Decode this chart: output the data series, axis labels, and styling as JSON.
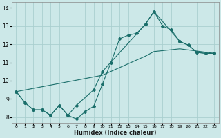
{
  "xlabel": "Humidex (Indice chaleur)",
  "bg_color": "#cce8e8",
  "grid_color": "#aacfcf",
  "line_color": "#1a6e6a",
  "xlim": [
    -0.5,
    23.5
  ],
  "ylim": [
    7.7,
    14.3
  ],
  "yticks": [
    8,
    9,
    10,
    11,
    12,
    13,
    14
  ],
  "xticks": [
    0,
    1,
    2,
    3,
    4,
    5,
    6,
    7,
    8,
    9,
    10,
    11,
    12,
    13,
    14,
    15,
    16,
    17,
    18,
    19,
    20,
    21,
    22,
    23
  ],
  "line1_x": [
    0,
    1,
    2,
    3,
    4,
    5,
    6,
    7,
    8,
    9,
    10,
    11,
    12,
    13,
    14,
    15,
    16,
    17,
    18,
    19,
    20,
    21,
    22,
    23
  ],
  "line1_y": [
    9.4,
    8.8,
    8.4,
    8.4,
    8.1,
    8.65,
    8.1,
    7.9,
    8.3,
    8.6,
    9.8,
    11.0,
    12.3,
    12.5,
    12.6,
    13.1,
    13.8,
    13.0,
    12.8,
    12.15,
    11.95,
    11.55,
    11.5,
    11.5
  ],
  "line2_x": [
    0,
    1,
    2,
    3,
    4,
    5,
    6,
    7,
    9,
    10,
    15,
    16,
    19,
    20,
    21,
    22,
    23
  ],
  "line2_y": [
    9.4,
    8.8,
    8.4,
    8.4,
    8.1,
    8.65,
    8.1,
    8.65,
    9.5,
    10.5,
    13.1,
    13.8,
    12.15,
    11.95,
    11.55,
    11.5,
    11.5
  ],
  "line3_x": [
    0,
    10,
    15,
    16,
    19,
    23
  ],
  "line3_y": [
    9.4,
    10.3,
    11.35,
    11.6,
    11.75,
    11.5
  ]
}
